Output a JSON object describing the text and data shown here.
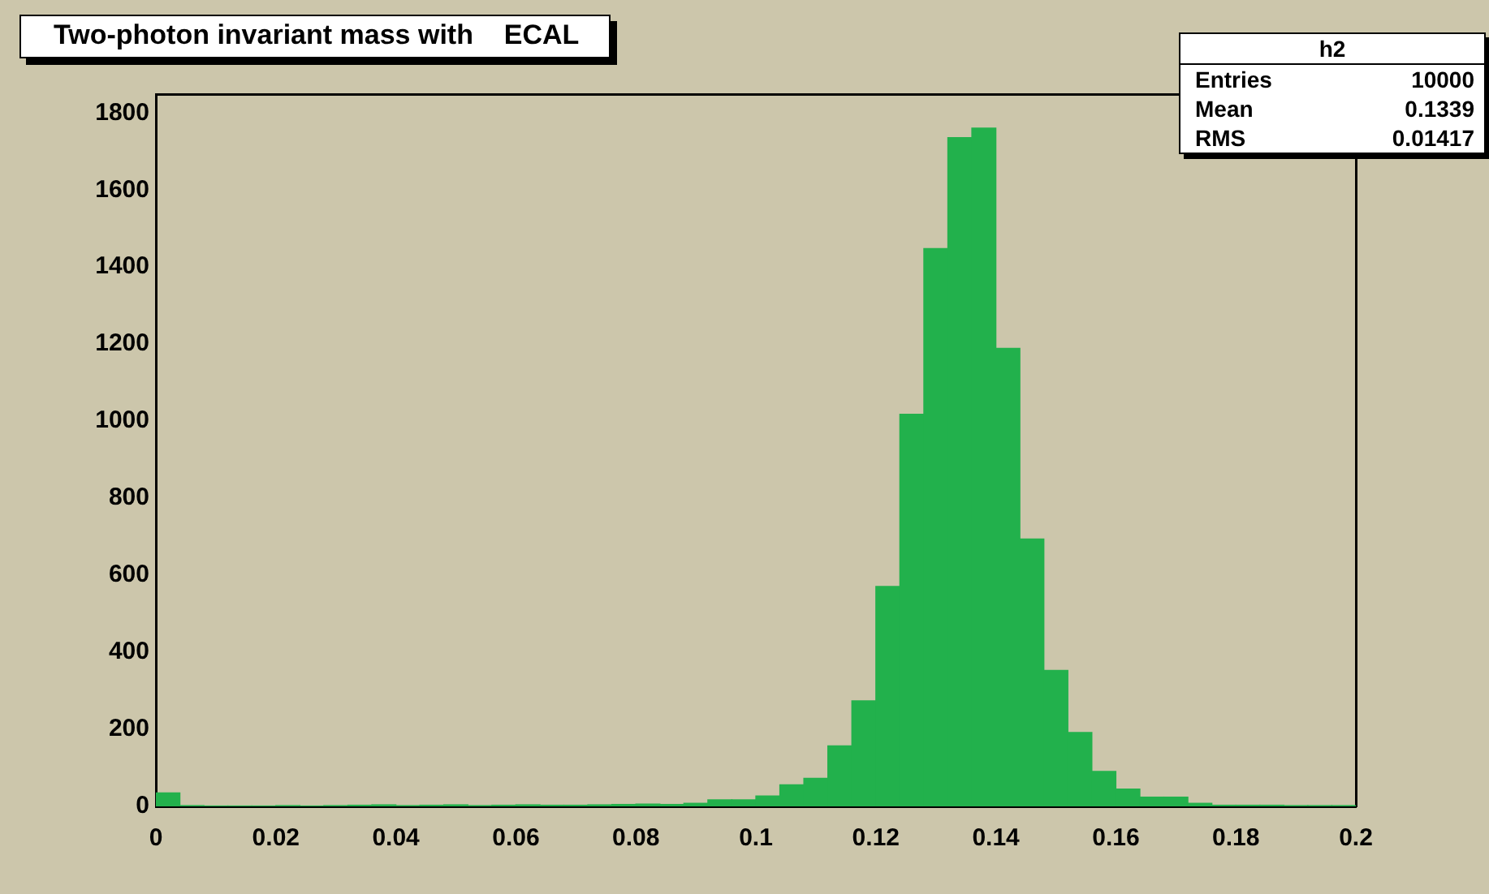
{
  "chart_data": {
    "type": "histogram",
    "title": "Two-photon invariant mass with    ECAL",
    "bins": [
      0,
      0.004,
      0.008,
      0.012,
      0.016,
      0.02,
      0.024,
      0.028,
      0.032,
      0.036,
      0.04,
      0.044,
      0.048,
      0.052,
      0.056,
      0.06,
      0.064,
      0.068,
      0.072,
      0.076,
      0.08,
      0.084,
      0.088,
      0.092,
      0.096,
      0.1,
      0.104,
      0.108,
      0.112,
      0.116,
      0.12,
      0.124,
      0.128,
      0.132,
      0.136,
      0.14,
      0.144,
      0.148,
      0.152,
      0.156,
      0.16,
      0.164,
      0.168,
      0.172,
      0.176,
      0.18,
      0.184,
      0.188,
      0.192,
      0.196,
      0.2
    ],
    "values": [
      35,
      2,
      1,
      1,
      1,
      2,
      1,
      2,
      3,
      4,
      2,
      3,
      4,
      2,
      3,
      4,
      3,
      3,
      4,
      5,
      6,
      5,
      8,
      17,
      17,
      27,
      56,
      73,
      157,
      274,
      571,
      1018,
      1448,
      1736,
      1761,
      1189,
      694,
      353,
      192,
      91,
      45,
      24,
      24,
      8,
      3,
      3,
      3,
      2,
      2,
      2
    ],
    "color": "#22b14c",
    "xlim": [
      0,
      0.2
    ],
    "xticks": [
      0,
      0.02,
      0.04,
      0.06,
      0.08,
      0.1,
      0.12,
      0.14,
      0.16,
      0.18,
      0.2
    ],
    "ylim": [
      0,
      1849
    ],
    "yticks": [
      0,
      200,
      400,
      600,
      800,
      1000,
      1200,
      1400,
      1600,
      1800
    ],
    "grid": false,
    "legend": false,
    "annotations": [
      "h2",
      "Entries 10000",
      "Mean 0.1339",
      "RMS 0.01417"
    ]
  }
}
